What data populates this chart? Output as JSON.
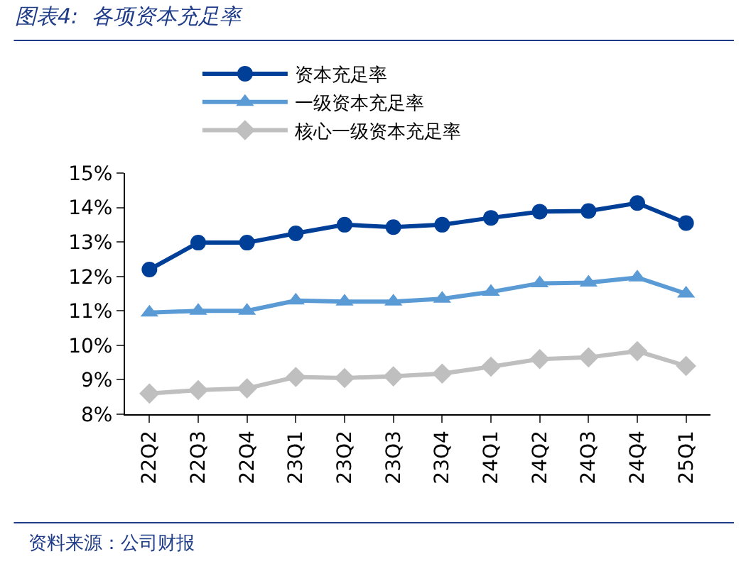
{
  "chart_data": {
    "type": "line",
    "title": "图表4:  各项资本充足率",
    "categories": [
      "22Q2",
      "22Q3",
      "22Q4",
      "23Q1",
      "23Q2",
      "23Q3",
      "23Q4",
      "24Q1",
      "24Q2",
      "24Q3",
      "24Q4",
      "25Q1"
    ],
    "series": [
      {
        "name": "资本充足率",
        "color": "#003f98",
        "marker": "circle",
        "values": [
          12.2,
          12.98,
          12.98,
          13.25,
          13.5,
          13.43,
          13.5,
          13.7,
          13.88,
          13.9,
          14.13,
          13.55
        ]
      },
      {
        "name": "一级资本充足率",
        "color": "#5b9bd5",
        "marker": "triangle",
        "values": [
          10.95,
          11.0,
          11.0,
          11.3,
          11.27,
          11.27,
          11.35,
          11.55,
          11.8,
          11.82,
          11.97,
          11.5
        ]
      },
      {
        "name": "核心一级资本充足率",
        "color": "#bfbfbf",
        "marker": "diamond",
        "values": [
          8.6,
          8.7,
          8.75,
          9.08,
          9.05,
          9.1,
          9.18,
          9.38,
          9.6,
          9.65,
          9.83,
          9.4
        ]
      }
    ],
    "ylim": [
      8,
      15
    ],
    "yticks": [
      {
        "value": 8,
        "label": "8%"
      },
      {
        "value": 9,
        "label": "9%"
      },
      {
        "value": 10,
        "label": "10%"
      },
      {
        "value": 11,
        "label": "11%"
      },
      {
        "value": 12,
        "label": "12%"
      },
      {
        "value": 13,
        "label": "13%"
      },
      {
        "value": 14,
        "label": "14%"
      },
      {
        "value": 15,
        "label": "15%"
      }
    ],
    "grid": false,
    "legend": "top left",
    "line_style": "solid",
    "annotations": [
      "资料来源：公司财报"
    ]
  }
}
